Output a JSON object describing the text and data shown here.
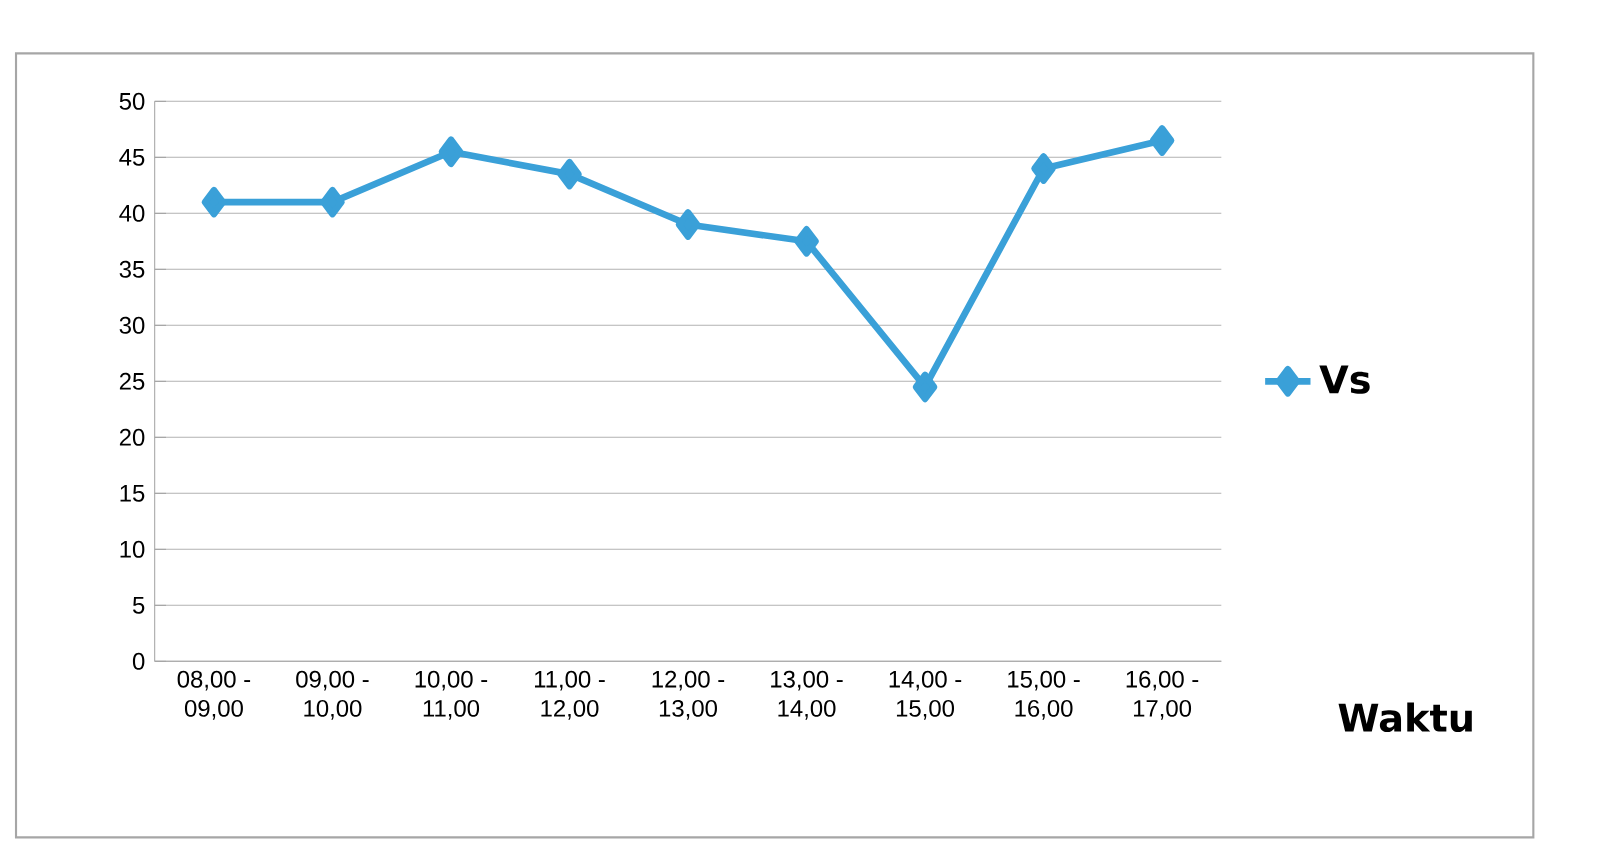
{
  "chart_data": {
    "type": "line",
    "xlabel": "Waktu",
    "categories": [
      "08,00 - 09,00",
      "09,00 - 10,00",
      "10,00 - 11,00",
      "11,00 - 12,00",
      "12,00 - 13,00",
      "13,00 - 14,00",
      "14,00 - 15,00",
      "15,00 - 16,00",
      "16,00 - 17,00"
    ],
    "series": [
      {
        "name": "Vs",
        "color": "#3aa0d8",
        "values": [
          41,
          41,
          45.5,
          43.5,
          39,
          37.5,
          24.5,
          44,
          46.5
        ]
      }
    ],
    "ylim": [
      0,
      50
    ],
    "yticks": [
      0,
      5,
      10,
      15,
      20,
      25,
      30,
      35,
      40,
      45,
      50
    ],
    "grid": "y",
    "legend": "right",
    "marker": "diamond",
    "line_style": "solid"
  }
}
